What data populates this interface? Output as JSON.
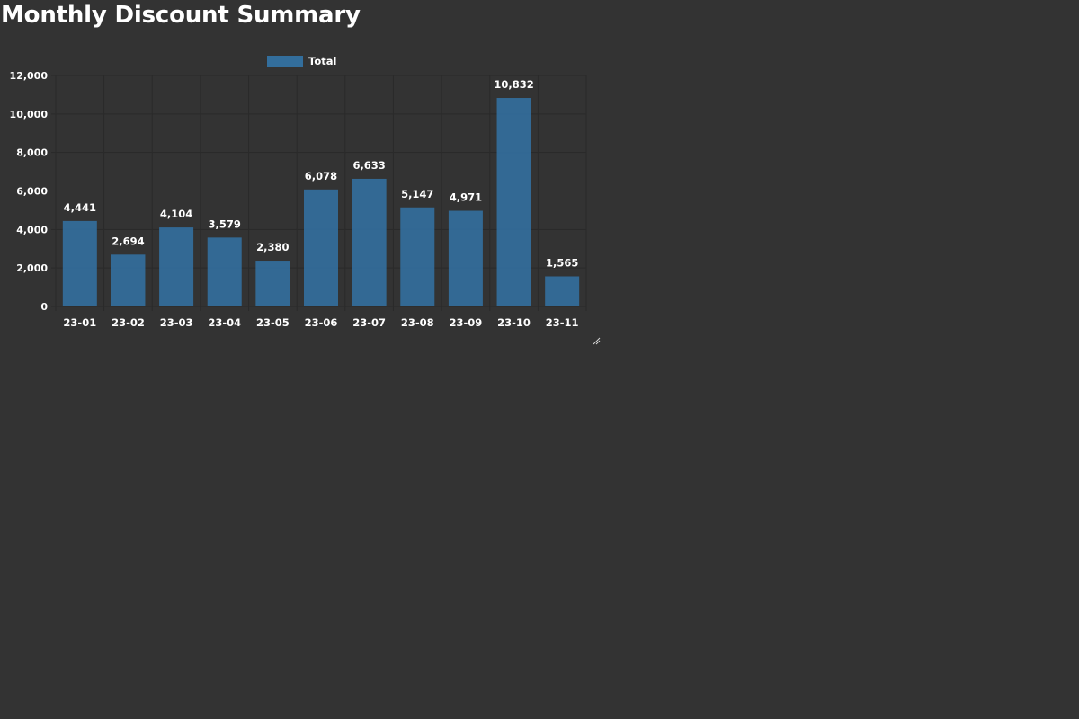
{
  "page": {
    "title": "Monthly Discount Summary"
  },
  "chart_data": {
    "type": "bar",
    "title": "",
    "xlabel": "",
    "ylabel": "",
    "categories": [
      "23-01",
      "23-02",
      "23-03",
      "23-04",
      "23-05",
      "23-06",
      "23-07",
      "23-08",
      "23-09",
      "23-10",
      "23-11"
    ],
    "series": [
      {
        "name": "Total",
        "values": [
          4441,
          2694,
          4104,
          3579,
          2380,
          6078,
          6633,
          5147,
          4971,
          10832,
          1565
        ],
        "color": "#336E9C"
      }
    ],
    "ylim": [
      0,
      12000
    ],
    "yticks": [
      0,
      2000,
      4000,
      6000,
      8000,
      10000,
      12000
    ],
    "ytick_labels": [
      "0",
      "2,000",
      "4,000",
      "6,000",
      "8,000",
      "10,000",
      "12,000"
    ],
    "data_labels": [
      "4,441",
      "2,694",
      "4,104",
      "3,579",
      "2,380",
      "6,078",
      "6,633",
      "5,147",
      "4,971",
      "10,832",
      "1,565"
    ],
    "grid": true,
    "legend_position": "top"
  },
  "colors": {
    "background": "#333333",
    "grid": "#2a2a2a",
    "text": "#ffffff",
    "bar": "#336E9C"
  }
}
